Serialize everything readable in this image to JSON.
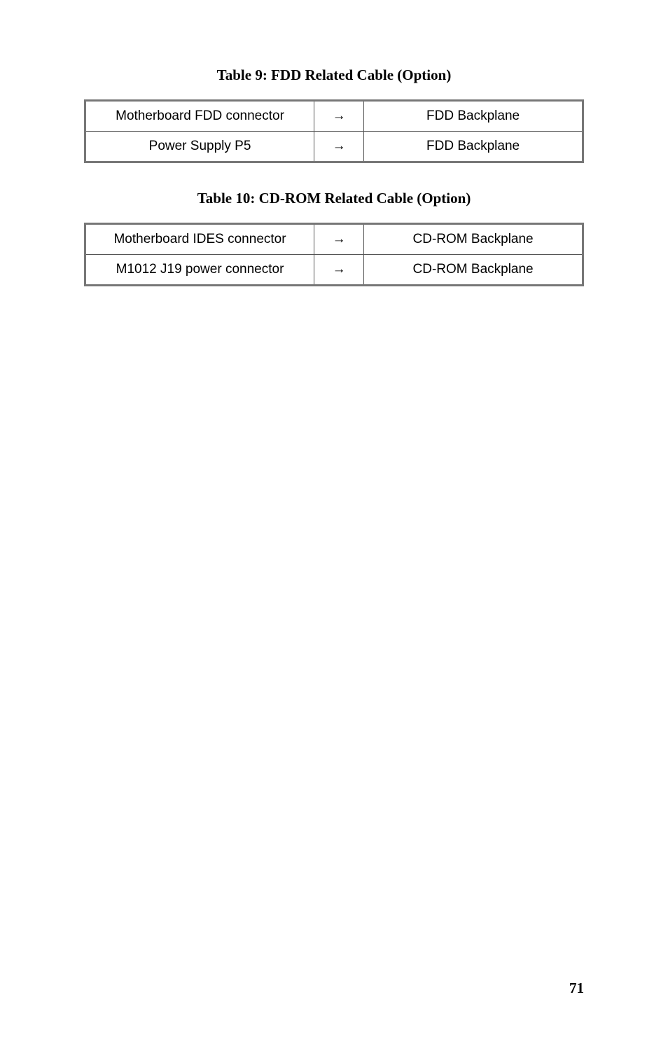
{
  "title1": {
    "text": "Table 9: FDD Related Cable (Option)",
    "fontsize_pt": 21
  },
  "table1": {
    "cell_fontsize_pt": 19,
    "rows": [
      {
        "left": "Motherboard FDD connector",
        "mid": "→",
        "right": "FDD Backplane"
      },
      {
        "left": "Power Supply P5",
        "mid": "→",
        "right": "FDD Backplane"
      }
    ]
  },
  "title2": {
    "text": "Table 10: CD-ROM Related Cable (Option)",
    "fontsize_pt": 21
  },
  "table2": {
    "cell_fontsize_pt": 19,
    "rows": [
      {
        "left": "Motherboard IDES connector",
        "mid": "→",
        "right": "CD-ROM Backplane"
      },
      {
        "left": "M1012 J19 power connector",
        "mid": "→",
        "right": "CD-ROM Backplane"
      }
    ]
  },
  "page_number": {
    "text": "71",
    "fontsize_pt": 21
  },
  "colors": {
    "page_bg": "#ffffff",
    "text": "#000000",
    "border_outer": "#777777",
    "border_inner": "#555555"
  }
}
